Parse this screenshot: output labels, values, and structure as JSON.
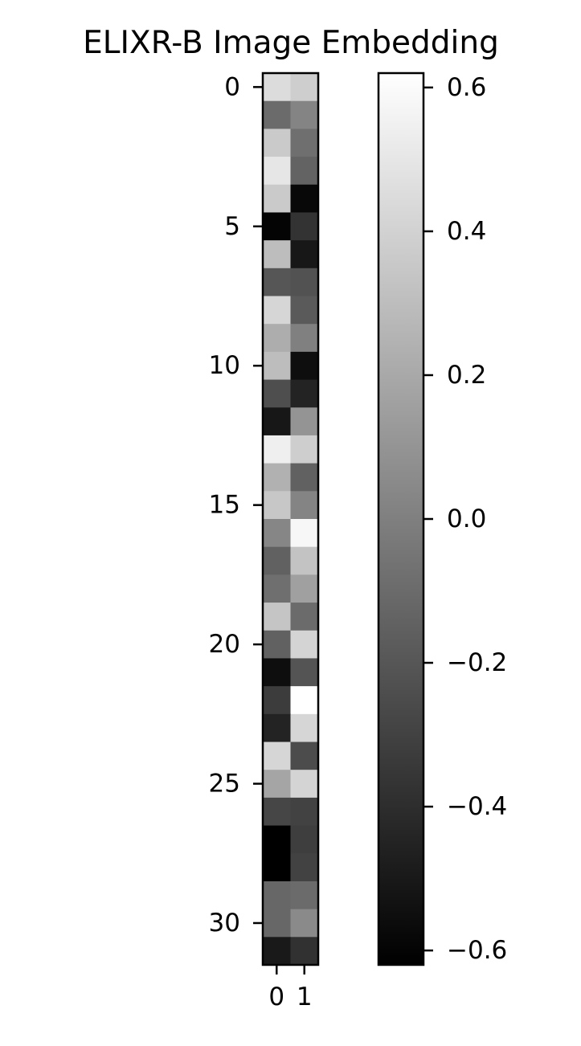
{
  "chart_data": {
    "type": "heatmap",
    "title": "ELIXR-B Image Embedding",
    "x_categories": [
      "0",
      "1"
    ],
    "y_ticks": [
      0,
      5,
      10,
      15,
      20,
      25,
      30
    ],
    "y_tick_labels": [
      "0",
      "5",
      "10",
      "15",
      "20",
      "25",
      "30"
    ],
    "x_tick_labels": [
      "0",
      "1"
    ],
    "colormap": "gray",
    "vmin": -0.62,
    "vmax": 0.62,
    "colorbar_ticks": [
      0.6,
      0.4,
      0.2,
      0.0,
      -0.2,
      -0.4,
      -0.6
    ],
    "colorbar_tick_labels": [
      "0.6",
      "0.4",
      "0.2",
      "0.0",
      "−0.2",
      "−0.4",
      "−0.6"
    ],
    "values": [
      [
        0.45,
        0.38
      ],
      [
        -0.1,
        0.02
      ],
      [
        0.36,
        -0.08
      ],
      [
        0.5,
        -0.14
      ],
      [
        0.36,
        -0.58
      ],
      [
        -0.6,
        -0.37
      ],
      [
        0.3,
        -0.51
      ],
      [
        -0.2,
        -0.22
      ],
      [
        0.42,
        -0.18
      ],
      [
        0.22,
        0.0
      ],
      [
        0.3,
        -0.55
      ],
      [
        -0.24,
        -0.45
      ],
      [
        -0.51,
        0.1
      ],
      [
        0.54,
        0.38
      ],
      [
        0.24,
        -0.15
      ],
      [
        0.35,
        0.02
      ],
      [
        0.03,
        0.58
      ],
      [
        -0.15,
        0.33
      ],
      [
        -0.08,
        0.16
      ],
      [
        0.34,
        -0.1
      ],
      [
        -0.15,
        0.41
      ],
      [
        -0.55,
        -0.21
      ],
      [
        -0.33,
        0.62
      ],
      [
        -0.45,
        0.42
      ],
      [
        0.42,
        -0.25
      ],
      [
        0.18,
        0.41
      ],
      [
        -0.28,
        -0.3
      ],
      [
        -0.62,
        -0.32
      ],
      [
        -0.62,
        -0.3
      ],
      [
        -0.12,
        -0.1
      ],
      [
        -0.12,
        0.05
      ],
      [
        -0.5,
        -0.38
      ]
    ]
  }
}
